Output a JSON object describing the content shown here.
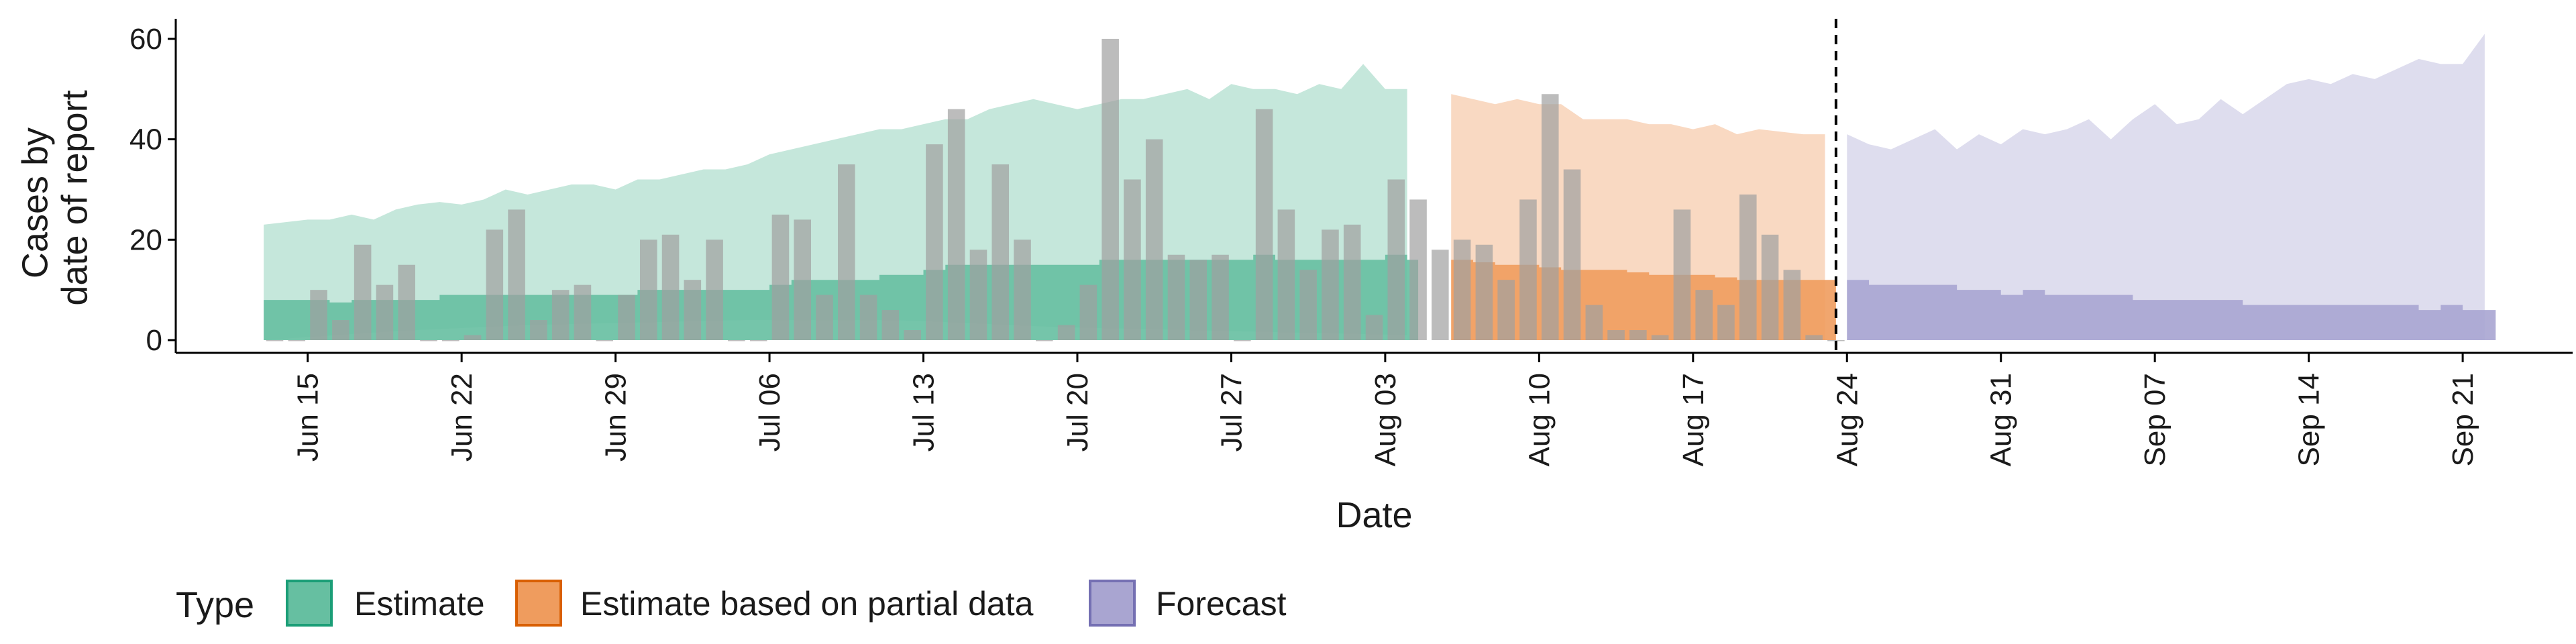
{
  "chart_data": {
    "type": "area",
    "xlabel": "Date",
    "ylabel": [
      "Cases by",
      "date of report"
    ],
    "ylim": [
      0,
      64
    ],
    "yticks": [
      0,
      20,
      40,
      60
    ],
    "xlim": [
      "2020-06-09",
      "2020-09-26"
    ],
    "xticks": [
      "2020-06-15",
      "2020-06-22",
      "2020-06-29",
      "2020-07-06",
      "2020-07-13",
      "2020-07-20",
      "2020-07-27",
      "2020-08-03",
      "2020-08-10",
      "2020-08-17",
      "2020-08-24",
      "2020-08-31",
      "2020-09-07",
      "2020-09-14",
      "2020-09-21"
    ],
    "xtick_labels": [
      "Jun 15",
      "Jun 22",
      "Jun 29",
      "Jul 06",
      "Jul 13",
      "Jul 20",
      "Jul 27",
      "Aug 03",
      "Aug 10",
      "Aug 17",
      "Aug 24",
      "Aug 31",
      "Sep 07",
      "Sep 14",
      "Sep 21"
    ],
    "forecast_line_date": "2020-08-23",
    "legend": {
      "title": "Type",
      "position": "bottom",
      "entries": [
        {
          "label": "Estimate",
          "fill": "#66bfa1",
          "stroke": "#1b9e77"
        },
        {
          "label": "Estimate based on partial data",
          "fill": "#ef9c5e",
          "stroke": "#d95f02"
        },
        {
          "label": "Forecast",
          "fill": "#a9a5d1",
          "stroke": "#7570b3"
        }
      ]
    },
    "bars": {
      "color": "#a0a0a0",
      "dates": [
        "2020-06-13",
        "2020-06-14",
        "2020-06-15",
        "2020-06-16",
        "2020-06-17",
        "2020-06-18",
        "2020-06-19",
        "2020-06-20",
        "2020-06-21",
        "2020-06-22",
        "2020-06-23",
        "2020-06-24",
        "2020-06-25",
        "2020-06-26",
        "2020-06-27",
        "2020-06-28",
        "2020-06-29",
        "2020-06-30",
        "2020-07-01",
        "2020-07-02",
        "2020-07-03",
        "2020-07-04",
        "2020-07-05",
        "2020-07-06",
        "2020-07-07",
        "2020-07-08",
        "2020-07-09",
        "2020-07-10",
        "2020-07-11",
        "2020-07-12",
        "2020-07-13",
        "2020-07-14",
        "2020-07-15",
        "2020-07-16",
        "2020-07-17",
        "2020-07-18",
        "2020-07-19",
        "2020-07-20",
        "2020-07-21",
        "2020-07-22",
        "2020-07-23",
        "2020-07-24",
        "2020-07-25",
        "2020-07-26",
        "2020-07-27",
        "2020-07-28",
        "2020-07-29",
        "2020-07-30",
        "2020-07-31",
        "2020-08-01",
        "2020-08-02",
        "2020-08-03",
        "2020-08-04",
        "2020-08-05",
        "2020-08-06",
        "2020-08-07",
        "2020-08-08",
        "2020-08-09",
        "2020-08-10",
        "2020-08-11",
        "2020-08-12",
        "2020-08-13",
        "2020-08-14",
        "2020-08-15",
        "2020-08-16",
        "2020-08-17",
        "2020-08-18",
        "2020-08-19",
        "2020-08-20",
        "2020-08-21",
        "2020-08-22",
        "2020-08-23"
      ],
      "values": [
        0,
        0,
        10,
        4,
        19,
        11,
        15,
        0,
        0,
        1,
        22,
        26,
        4,
        10,
        11,
        0,
        9,
        20,
        21,
        12,
        20,
        0,
        0,
        25,
        24,
        9,
        35,
        9,
        6,
        2,
        39,
        46,
        18,
        35,
        20,
        0,
        3,
        11,
        60,
        32,
        40,
        17,
        16,
        17,
        0,
        46,
        26,
        14,
        22,
        23,
        5,
        32,
        28,
        18,
        20,
        19,
        12,
        28,
        49,
        34,
        7,
        2,
        2,
        1,
        26,
        10,
        7,
        29,
        21,
        14,
        1,
        0
      ]
    },
    "series": [
      {
        "name": "Estimate",
        "dates": [
          "2020-06-13",
          "2020-06-14",
          "2020-06-15",
          "2020-06-16",
          "2020-06-17",
          "2020-06-18",
          "2020-06-19",
          "2020-06-20",
          "2020-06-21",
          "2020-06-22",
          "2020-06-23",
          "2020-06-24",
          "2020-06-25",
          "2020-06-26",
          "2020-06-27",
          "2020-06-28",
          "2020-06-29",
          "2020-06-30",
          "2020-07-01",
          "2020-07-02",
          "2020-07-03",
          "2020-07-04",
          "2020-07-05",
          "2020-07-06",
          "2020-07-07",
          "2020-07-08",
          "2020-07-09",
          "2020-07-10",
          "2020-07-11",
          "2020-07-12",
          "2020-07-13",
          "2020-07-14",
          "2020-07-15",
          "2020-07-16",
          "2020-07-17",
          "2020-07-18",
          "2020-07-19",
          "2020-07-20",
          "2020-07-21",
          "2020-07-22",
          "2020-07-23",
          "2020-07-24",
          "2020-07-25",
          "2020-07-26",
          "2020-07-27",
          "2020-07-28",
          "2020-07-29",
          "2020-07-30",
          "2020-07-31",
          "2020-08-01",
          "2020-08-02",
          "2020-08-03",
          "2020-08-04"
        ],
        "lower": [
          0,
          0.3,
          0.6,
          0.9,
          1.2,
          1.5,
          1.8,
          2.0,
          2.2,
          2.4,
          2.6,
          2.8,
          3.0,
          3.1,
          3.2,
          3.3,
          3.4,
          3.5,
          3.6,
          3.7,
          3.8,
          3.9,
          4.0,
          4.0,
          4.0,
          4.0,
          4.0,
          4.0,
          4.0,
          3.9,
          3.8,
          3.6,
          3.4,
          3.2,
          3.0,
          2.8,
          2.6,
          2.5,
          2.4,
          2.3,
          2.2,
          2.1,
          2.0,
          1.9,
          1.8,
          1.7,
          1.6,
          1.5,
          1.4,
          1.3,
          1.2,
          1.1,
          1.0
        ],
        "inner_lower": [
          0,
          0,
          0,
          0,
          0,
          0,
          0,
          0,
          0,
          0,
          0,
          0,
          0,
          0,
          0,
          0,
          0,
          0,
          0,
          0,
          0,
          0,
          0,
          0,
          0,
          0,
          0,
          0,
          0,
          0,
          0,
          0,
          0,
          0,
          0,
          0,
          0,
          0,
          0,
          0,
          0,
          0,
          0,
          0,
          0,
          0,
          0,
          0,
          0,
          0,
          0,
          0,
          0
        ],
        "inner_upper": [
          8,
          8,
          8,
          7.5,
          8,
          8,
          8,
          8,
          9,
          9,
          9,
          9,
          9,
          9,
          9,
          9,
          9,
          10,
          10,
          10,
          10,
          10,
          10,
          11,
          12,
          12,
          12,
          12,
          13,
          13,
          14,
          15,
          15,
          15,
          15,
          15,
          15,
          15,
          16,
          16,
          16,
          16,
          16,
          16,
          16,
          17,
          16,
          16,
          16,
          16,
          16,
          17,
          16
        ],
        "upper": [
          23,
          23.5,
          24,
          24,
          25,
          24,
          26,
          27,
          27.5,
          27,
          28,
          30,
          29,
          30,
          31,
          31,
          30,
          32,
          32,
          33,
          34,
          34,
          35,
          37,
          38,
          39,
          40,
          41,
          42,
          42,
          43,
          44,
          44,
          46,
          47,
          48,
          47,
          46,
          47,
          48,
          48,
          49,
          50,
          48,
          51,
          50,
          50,
          49,
          51,
          50,
          55,
          50,
          50
        ]
      },
      {
        "name": "Estimate based on partial data",
        "dates": [
          "2020-08-06",
          "2020-08-07",
          "2020-08-08",
          "2020-08-09",
          "2020-08-10",
          "2020-08-11",
          "2020-08-12",
          "2020-08-13",
          "2020-08-14",
          "2020-08-15",
          "2020-08-16",
          "2020-08-17",
          "2020-08-18",
          "2020-08-19",
          "2020-08-20",
          "2020-08-21",
          "2020-08-22",
          "2020-08-23"
        ],
        "inner_upper": [
          16,
          15.5,
          15,
          15,
          14.5,
          14,
          14,
          14,
          13.5,
          13,
          13,
          13,
          12.5,
          12,
          12,
          12,
          12,
          12
        ],
        "upper": [
          49,
          48,
          47,
          48,
          47,
          47,
          44,
          44,
          44,
          43,
          43,
          42,
          43,
          41,
          42,
          41.5,
          41,
          41
        ]
      },
      {
        "name": "Forecast",
        "dates": [
          "2020-08-24",
          "2020-08-25",
          "2020-08-26",
          "2020-08-27",
          "2020-08-28",
          "2020-08-29",
          "2020-08-30",
          "2020-08-31",
          "2020-09-01",
          "2020-09-02",
          "2020-09-03",
          "2020-09-04",
          "2020-09-05",
          "2020-09-06",
          "2020-09-07",
          "2020-09-08",
          "2020-09-09",
          "2020-09-10",
          "2020-09-11",
          "2020-09-12",
          "2020-09-13",
          "2020-09-14",
          "2020-09-15",
          "2020-09-16",
          "2020-09-17",
          "2020-09-18",
          "2020-09-19",
          "2020-09-20",
          "2020-09-21",
          "2020-09-22"
        ],
        "inner_upper": [
          12,
          11,
          11,
          11,
          11,
          10,
          10,
          9,
          10,
          9,
          9,
          9,
          9,
          8,
          8,
          8,
          8,
          8,
          7,
          7,
          7,
          7,
          7,
          7,
          7,
          7,
          6,
          7,
          6,
          6
        ],
        "upper": [
          41,
          39,
          38,
          40,
          42,
          38,
          41,
          39,
          42,
          41,
          42,
          44,
          40,
          44,
          47,
          43,
          44,
          48,
          45,
          48,
          51,
          52,
          51,
          53,
          52,
          54,
          56,
          55,
          55,
          61
        ]
      }
    ]
  }
}
